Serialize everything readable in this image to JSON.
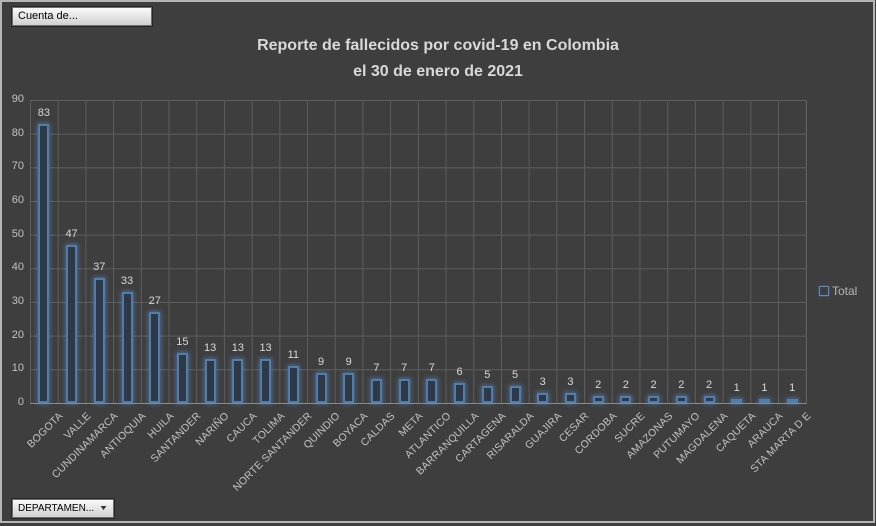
{
  "window": {
    "background_color": "#3e3e3e",
    "frame_border_color": "#b5b5b5"
  },
  "pivot_buttons": {
    "value_field": "Cuenta de...",
    "axis_field": "DEPARTAMEN...",
    "dropdown_glyph": "▼"
  },
  "chart": {
    "title_line1": "Reporte de fallecidos por covid-19 en Colombia",
    "title_line2": "el 30 de enero de 2021",
    "legend_label": "Total"
  },
  "chart_data": {
    "type": "bar",
    "title": "Reporte de fallecidos por covid-19 en Colombia el 30 de enero de 2021",
    "xlabel": "",
    "ylabel": "",
    "ylim": [
      0,
      90
    ],
    "yticks": [
      0,
      10,
      20,
      30,
      40,
      50,
      60,
      70,
      80,
      90
    ],
    "grid": true,
    "legend_position": "right",
    "series_name": "Total",
    "categories": [
      "BOGOTA",
      "VALLE",
      "CUNDINAMARCA",
      "ANTIOQUIA",
      "HUILA",
      "SANTANDER",
      "NARIÑO",
      "CAUCA",
      "TOLIMA",
      "NORTE SANTANDER",
      "QUINDIO",
      "BOYACA",
      "CALDAS",
      "META",
      "ATLANTICO",
      "BARRANQUILLA",
      "CARTAGENA",
      "RISARALDA",
      "GUAJIRA",
      "CESAR",
      "CORDOBA",
      "SUCRE",
      "AMAZONAS",
      "PUTUMAYO",
      "MAGDALENA",
      "CAQUETA",
      "ARAUCA",
      "STA MARTA D E"
    ],
    "values": [
      83,
      47,
      37,
      33,
      27,
      15,
      13,
      13,
      13,
      11,
      9,
      9,
      7,
      7,
      7,
      6,
      5,
      5,
      3,
      3,
      2,
      2,
      2,
      2,
      2,
      1,
      1,
      1
    ],
    "colors": {
      "bar_border": "#4e7dae",
      "bar_fill": "#2f3945",
      "bar_glow": "rgba(97,156,213,0.5)",
      "gridline": "#5d5d5d",
      "axis_line": "#8a8a8a",
      "axis_text": "#c2c2c2",
      "data_label": "#d8d8d8",
      "title_text": "#d9d9d9"
    }
  }
}
